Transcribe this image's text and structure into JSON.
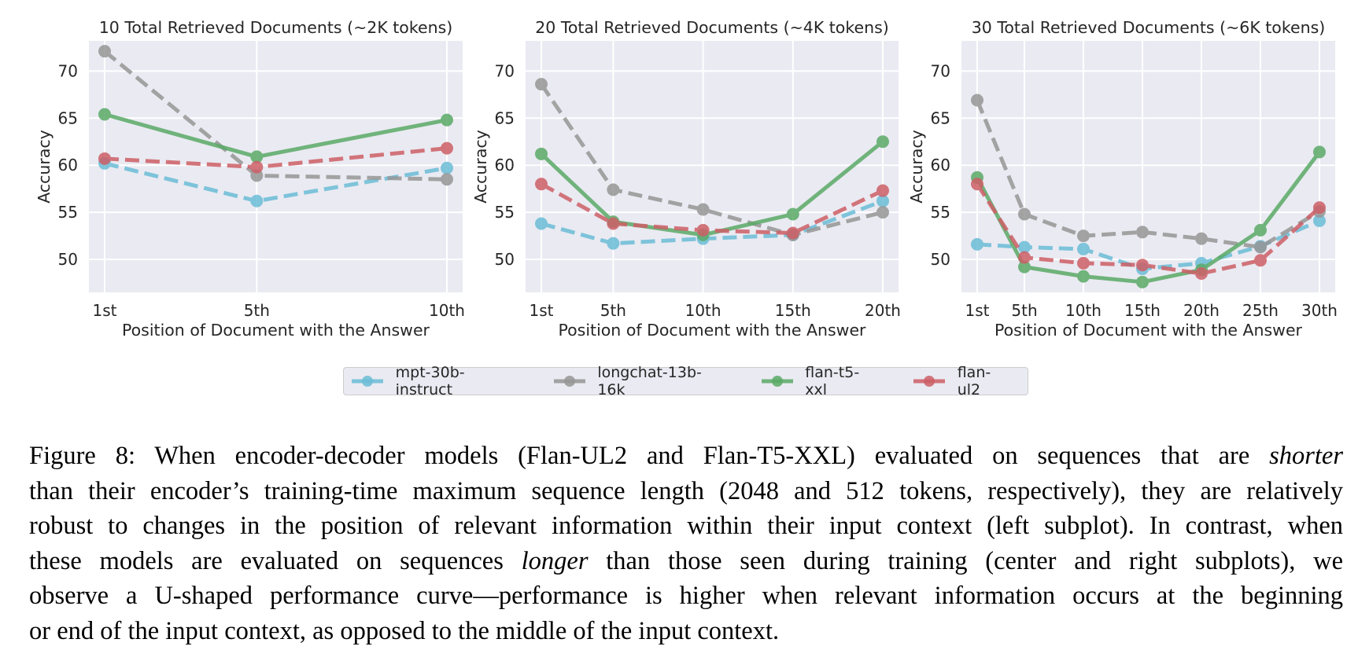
{
  "chart_data": [
    {
      "type": "line",
      "title": "10 Total Retrieved Documents (~2K tokens)",
      "xlabel": "Position of Document with the Answer",
      "ylabel": "Accuracy",
      "categories": [
        "1st",
        "5th",
        "10th"
      ],
      "x": [
        1,
        5,
        10
      ],
      "ylim": [
        46.5,
        73.2
      ],
      "yticks": [
        50,
        55,
        60,
        65,
        70
      ],
      "grid": true,
      "series": [
        {
          "name": "mpt-30b-instruct",
          "values": [
            60.2,
            56.2,
            59.7
          ]
        },
        {
          "name": "longchat-13b-16k",
          "values": [
            72.1,
            58.9,
            58.5
          ]
        },
        {
          "name": "flan-t5-xxl",
          "values": [
            65.4,
            60.9,
            64.8
          ]
        },
        {
          "name": "flan-ul2",
          "values": [
            60.7,
            59.8,
            61.8
          ]
        }
      ]
    },
    {
      "type": "line",
      "title": "20 Total Retrieved Documents (~4K tokens)",
      "xlabel": "Position of Document with the Answer",
      "ylabel": "Accuracy",
      "categories": [
        "1st",
        "5th",
        "10th",
        "15th",
        "20th"
      ],
      "x": [
        1,
        5,
        10,
        15,
        20
      ],
      "ylim": [
        46.5,
        73.2
      ],
      "yticks": [
        50,
        55,
        60,
        65,
        70
      ],
      "grid": true,
      "series": [
        {
          "name": "mpt-30b-instruct",
          "values": [
            53.8,
            51.7,
            52.2,
            52.6,
            56.2
          ]
        },
        {
          "name": "longchat-13b-16k",
          "values": [
            68.6,
            57.4,
            55.3,
            52.6,
            55.0
          ]
        },
        {
          "name": "flan-t5-xxl",
          "values": [
            61.2,
            54.0,
            52.6,
            54.8,
            62.5
          ]
        },
        {
          "name": "flan-ul2",
          "values": [
            58.0,
            53.8,
            53.1,
            52.8,
            57.3
          ]
        }
      ]
    },
    {
      "type": "line",
      "title": "30 Total Retrieved Documents (~6K tokens)",
      "xlabel": "Position of Document with the Answer",
      "ylabel": "Accuracy",
      "categories": [
        "1st",
        "5th",
        "10th",
        "15th",
        "20th",
        "25th",
        "30th"
      ],
      "x": [
        1,
        5,
        10,
        15,
        20,
        25,
        30
      ],
      "ylim": [
        46.5,
        73.2
      ],
      "yticks": [
        50,
        55,
        60,
        65,
        70
      ],
      "grid": true,
      "series": [
        {
          "name": "mpt-30b-instruct",
          "values": [
            51.6,
            51.3,
            51.1,
            49.0,
            49.6,
            51.4,
            54.1
          ]
        },
        {
          "name": "longchat-13b-16k",
          "values": [
            66.9,
            54.8,
            52.5,
            52.9,
            52.2,
            51.3,
            55.1
          ]
        },
        {
          "name": "flan-t5-xxl",
          "values": [
            58.7,
            49.2,
            48.2,
            47.6,
            48.9,
            53.1,
            61.4
          ]
        },
        {
          "name": "flan-ul2",
          "values": [
            58.0,
            50.2,
            49.6,
            49.4,
            48.5,
            49.9,
            55.5
          ]
        }
      ]
    }
  ],
  "legend": {
    "placement": "bottom-center",
    "items": [
      {
        "label": "mpt-30b-instruct",
        "color": "#6bbdd6",
        "dashed": true
      },
      {
        "label": "longchat-13b-16k",
        "color": "#969696",
        "dashed": true
      },
      {
        "label": "flan-t5-xxl",
        "color": "#5aaa67",
        "dashed": false
      },
      {
        "label": "flan-ul2",
        "color": "#cd5f66",
        "dashed": true
      }
    ]
  },
  "caption": {
    "lines": [
      [
        {
          "t": "Figure 8: When encoder-decoder models (Flan-UL2 and Flan-T5-XXL) evaluated on sequences that are "
        },
        {
          "t": "shorter",
          "i": true
        }
      ],
      [
        {
          "t": "than their encoder’s training-time maximum sequence length (2048 and 512 tokens, respectively), they are relatively"
        }
      ],
      [
        {
          "t": "robust to changes in the position of relevant information within their input context (left subplot). In contrast, when"
        }
      ],
      [
        {
          "t": "these models are evaluated on sequences "
        },
        {
          "t": "longer",
          "i": true
        },
        {
          "t": " than those seen during training (center and right subplots), we"
        }
      ],
      [
        {
          "t": "observe a U-shaped performance curve—performance is higher when relevant information occurs at the beginning"
        }
      ],
      [
        {
          "t": "or end of the input context, as opposed to the middle of the input context."
        }
      ]
    ]
  }
}
